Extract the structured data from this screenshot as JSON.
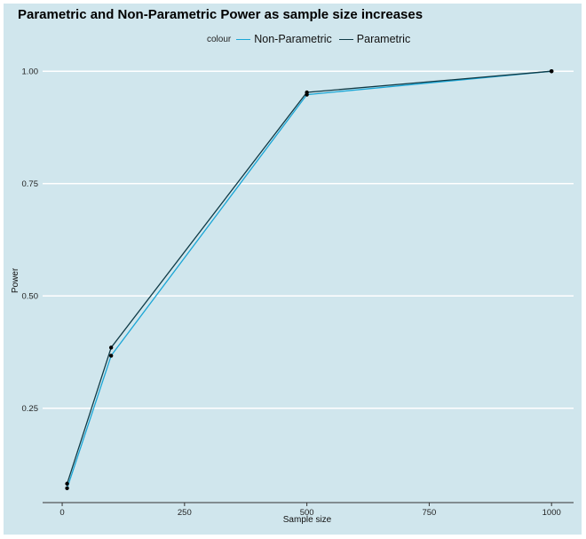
{
  "chart_data": {
    "type": "line",
    "title": "Parametric and Non-Parametric Power as sample size increases",
    "xlabel": "Sample size",
    "ylabel": "Power",
    "legend_title": "colour",
    "legend_position": "top",
    "x": [
      10,
      100,
      500,
      1000
    ],
    "xlim": [
      -40,
      1045
    ],
    "ylim": [
      0.04,
      1.04
    ],
    "xticks": [
      0,
      250,
      500,
      750,
      1000
    ],
    "xtick_labels": [
      "0",
      "250",
      "500",
      "750",
      "1000"
    ],
    "yticks": [
      0.25,
      0.5,
      0.75,
      1.0
    ],
    "ytick_labels": [
      "0.25",
      "0.50",
      "0.75",
      "1.00"
    ],
    "grid": "horizontal major lines only",
    "series": [
      {
        "name": "Non-Parametric",
        "color": "#1aa6d6",
        "values": [
          0.072,
          0.367,
          0.948,
          1.0
        ]
      },
      {
        "name": "Parametric",
        "color": "#0e3a46",
        "values": [
          0.082,
          0.385,
          0.953,
          1.0
        ]
      }
    ]
  }
}
